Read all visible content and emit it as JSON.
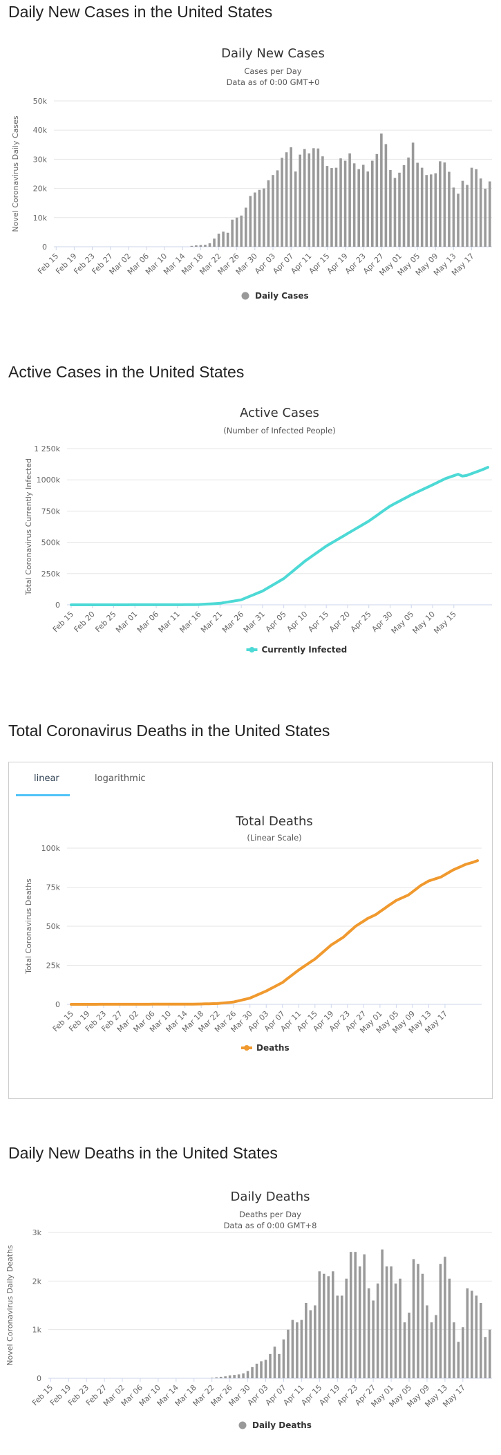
{
  "sections": {
    "daily_cases_heading": "Daily New Cases in the United States",
    "active_cases_heading": "Active Cases in the United States",
    "total_deaths_heading": "Total Coronavirus Deaths in the United States",
    "daily_deaths_heading": "Daily New Deaths in the United States"
  },
  "tabs": {
    "linear": "linear",
    "logarithmic": "logarithmic",
    "selected": "linear"
  },
  "colors": {
    "bars": "#999999",
    "active": "#4dd9d5",
    "deaths": "#f0992e",
    "grid": "#e6e6e6",
    "axis": "#ccd6eb",
    "tab_underline": "#4fc3f7"
  },
  "chart_data": [
    {
      "id": "daily_cases",
      "type": "bar",
      "title": "Daily New Cases",
      "subtitle_lines": [
        "Cases per Day",
        "Data as of 0:00 GMT+0"
      ],
      "ylabel": "Novel Coronavirus Daily Cases",
      "xlabel": "",
      "ylim": [
        0,
        50000
      ],
      "yticks": [
        0,
        10000,
        20000,
        30000,
        40000,
        50000
      ],
      "ytick_labels": [
        "0",
        "10k",
        "20k",
        "30k",
        "40k",
        "50k"
      ],
      "xtick_labels": [
        "Feb 15",
        "Feb 19",
        "Feb 23",
        "Feb 27",
        "Mar 02",
        "Mar 06",
        "Mar 10",
        "Mar 14",
        "Mar 18",
        "Mar 22",
        "Mar 26",
        "Mar 30",
        "Apr 03",
        "Apr 07",
        "Apr 11",
        "Apr 15",
        "Apr 19",
        "Apr 23",
        "Apr 27",
        "May 01",
        "May 05",
        "May 09",
        "May 13",
        "May 17"
      ],
      "xtick_every": 4,
      "legend": "Daily Cases",
      "values": [
        0,
        0,
        0,
        0,
        0,
        0,
        0,
        0,
        0,
        0,
        0,
        0,
        0,
        0,
        0,
        0,
        0,
        0,
        0,
        0,
        0,
        0,
        0,
        0,
        0,
        0,
        0,
        0,
        0,
        0,
        300,
        500,
        600,
        700,
        1200,
        2800,
        4500,
        5200,
        4800,
        9300,
        10000,
        10700,
        13400,
        17400,
        18600,
        19500,
        20000,
        22800,
        24600,
        26200,
        30500,
        32400,
        34100,
        25800,
        31600,
        33500,
        32000,
        33800,
        33700,
        31000,
        27700,
        27000,
        27100,
        30300,
        29500,
        32000,
        28600,
        26600,
        28100,
        25800,
        29500,
        31800,
        38800,
        35200,
        26300,
        23600,
        25400,
        28000,
        30600,
        35700,
        28800,
        27100,
        24600,
        24800,
        25200,
        29300,
        28900,
        25700,
        20300,
        18200,
        22600,
        21200,
        27100,
        26600,
        23400,
        19900,
        22400
      ]
    },
    {
      "id": "active_cases",
      "type": "line",
      "title": "Active Cases",
      "subtitle_lines": [
        "(Number of Infected People)"
      ],
      "ylabel": "Total Coronavirus Currently Infected",
      "xlabel": "",
      "ylim": [
        0,
        1250000
      ],
      "yticks": [
        0,
        250000,
        500000,
        750000,
        1000000,
        1250000
      ],
      "ytick_labels": [
        "0",
        "250k",
        "500k",
        "750k",
        "1000k",
        "1 250k"
      ],
      "xtick_labels": [
        "Feb 15",
        "Feb 20",
        "Feb 25",
        "Mar 01",
        "Mar 06",
        "Mar 11",
        "Mar 16",
        "Mar 21",
        "Mar 26",
        "Mar 31",
        "Apr 05",
        "Apr 10",
        "Apr 15",
        "Apr 20",
        "Apr 25",
        "Apr 30",
        "May 05",
        "May 10",
        "May 15"
      ],
      "xtick_every": 5,
      "legend": "Currently Infected",
      "keypoints": [
        [
          0,
          0
        ],
        [
          25,
          500
        ],
        [
          30,
          2000
        ],
        [
          35,
          12000
        ],
        [
          40,
          40000
        ],
        [
          45,
          110000
        ],
        [
          50,
          210000
        ],
        [
          55,
          350000
        ],
        [
          60,
          470000
        ],
        [
          65,
          570000
        ],
        [
          70,
          670000
        ],
        [
          75,
          790000
        ],
        [
          80,
          880000
        ],
        [
          85,
          960000
        ],
        [
          88,
          1010000
        ],
        [
          91,
          1045000
        ],
        [
          92,
          1030000
        ],
        [
          93,
          1035000
        ],
        [
          95,
          1060000
        ],
        [
          97,
          1085000
        ],
        [
          98,
          1100000
        ]
      ]
    },
    {
      "id": "total_deaths",
      "type": "line",
      "title": "Total Deaths",
      "subtitle_lines": [
        "(Linear Scale)"
      ],
      "ylabel": "Total Coronavirus Deaths",
      "xlabel": "",
      "ylim": [
        0,
        100000
      ],
      "yticks": [
        0,
        25000,
        50000,
        75000,
        100000
      ],
      "ytick_labels": [
        "0",
        "25k",
        "50k",
        "75k",
        "100k"
      ],
      "xtick_labels": [
        "Feb 15",
        "Feb 19",
        "Feb 23",
        "Feb 27",
        "Mar 02",
        "Mar 06",
        "Mar 10",
        "Mar 14",
        "Mar 18",
        "Mar 22",
        "Mar 26",
        "Mar 30",
        "Apr 03",
        "Apr 07",
        "Apr 11",
        "Apr 15",
        "Apr 19",
        "Apr 23",
        "Apr 27",
        "May 01",
        "May 05",
        "May 09",
        "May 13",
        "May 17"
      ],
      "xtick_every": 4,
      "legend": "Deaths",
      "keypoints": [
        [
          0,
          0
        ],
        [
          30,
          100
        ],
        [
          36,
          500
        ],
        [
          40,
          1500
        ],
        [
          44,
          4000
        ],
        [
          48,
          8500
        ],
        [
          52,
          14000
        ],
        [
          56,
          22000
        ],
        [
          60,
          29000
        ],
        [
          64,
          38000
        ],
        [
          67,
          43000
        ],
        [
          70,
          50000
        ],
        [
          73,
          55000
        ],
        [
          75,
          57500
        ],
        [
          78,
          63000
        ],
        [
          80,
          66500
        ],
        [
          83,
          70000
        ],
        [
          86,
          76000
        ],
        [
          88,
          79000
        ],
        [
          91,
          81500
        ],
        [
          94,
          86000
        ],
        [
          97,
          89500
        ],
        [
          99,
          91000
        ],
        [
          100,
          92000
        ]
      ]
    },
    {
      "id": "daily_deaths",
      "type": "bar",
      "title": "Daily Deaths",
      "subtitle_lines": [
        "Deaths per Day",
        "Data as of 0:00 GMT+8"
      ],
      "ylabel": "Novel Coronavirus Daily Deaths",
      "xlabel": "",
      "ylim": [
        0,
        3000
      ],
      "yticks": [
        0,
        1000,
        2000,
        3000
      ],
      "ytick_labels": [
        "0",
        "1k",
        "2k",
        "3k"
      ],
      "xtick_labels": [
        "Feb 15",
        "Feb 19",
        "Feb 23",
        "Feb 27",
        "Mar 02",
        "Mar 06",
        "Mar 10",
        "Mar 14",
        "Mar 18",
        "Mar 22",
        "Mar 26",
        "Mar 30",
        "Apr 03",
        "Apr 07",
        "Apr 11",
        "Apr 15",
        "Apr 19",
        "Apr 23",
        "Apr 27",
        "May 01",
        "May 05",
        "May 09",
        "May 13",
        "May 17"
      ],
      "xtick_every": 4,
      "legend": "Daily Deaths",
      "values": [
        0,
        0,
        0,
        0,
        0,
        0,
        0,
        0,
        0,
        0,
        0,
        0,
        0,
        0,
        0,
        0,
        0,
        0,
        0,
        0,
        0,
        0,
        0,
        0,
        0,
        0,
        0,
        0,
        0,
        0,
        0,
        0,
        0,
        0,
        0,
        0,
        10,
        20,
        30,
        40,
        60,
        70,
        80,
        100,
        150,
        230,
        300,
        350,
        380,
        500,
        650,
        500,
        800,
        1000,
        1200,
        1150,
        1200,
        1550,
        1400,
        1500,
        2200,
        2150,
        2100,
        2200,
        1700,
        1700,
        2050,
        2600,
        2600,
        2300,
        2550,
        1850,
        1600,
        1950,
        2650,
        2300,
        2300,
        1950,
        2050,
        1150,
        1350,
        2450,
        2350,
        2150,
        1500,
        1150,
        1300,
        2350,
        2500,
        2050,
        1150,
        750,
        1050,
        1850,
        1800,
        1700,
        1550,
        850,
        1000
      ]
    }
  ]
}
